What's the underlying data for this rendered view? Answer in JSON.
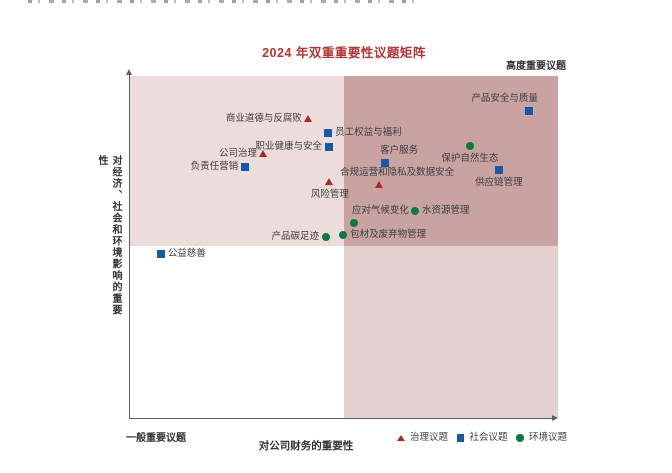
{
  "page": {
    "title": "2024 年双重重要性议题矩阵",
    "corner_label_top_right": "高度重要议题",
    "corner_label_bottom_left": "一般重要议题",
    "x_axis_title": "对公司财务的重要性",
    "y_axis_title": "对经济、社会和环境影响的重要性"
  },
  "colors": {
    "title": "#b23535",
    "governance": "#b02626",
    "social": "#1659a5",
    "environment": "#0c7a40",
    "quadrant_top_left": "#ecdcdc",
    "quadrant_top_right": "#c9a2a2",
    "quadrant_bottom_left": "#ffffff",
    "quadrant_bottom_right": "#e3d0d0",
    "axis": "#5f5f5f"
  },
  "legend": {
    "items": [
      {
        "label": "治理议题",
        "marker": "triangle",
        "category": "governance"
      },
      {
        "label": "社会议题",
        "marker": "square",
        "category": "social"
      },
      {
        "label": "环境议题",
        "marker": "circle",
        "category": "environment"
      }
    ]
  },
  "chart_data": {
    "type": "scatter",
    "title": "2024 年双重重要性议题矩阵",
    "xlabel": "对公司财务的重要性",
    "ylabel": "对经济、社会和环境影响的重要性",
    "xlim": [
      0,
      100
    ],
    "ylim": [
      0,
      100
    ],
    "grid": false,
    "legend_position": "bottom-right",
    "quadrant_labels": {
      "top_right": "高度重要议题",
      "bottom_left": "一般重要议题"
    },
    "quadrant_split": {
      "x_pct": 50,
      "y_pct": 50.3
    },
    "series": [
      {
        "name": "治理议题",
        "marker": "triangle",
        "category": "governance",
        "points": [
          {
            "label": "商业道德与反腐败",
            "x": 41.8,
            "y": 87.4,
            "side": "left"
          },
          {
            "label": "公司治理",
            "x": 31.3,
            "y": 77.2,
            "side": "left"
          },
          {
            "label": "合规运营和隐私及数据安全",
            "x": 58.2,
            "y": 68.1,
            "side": "above",
            "dx": -39
          },
          {
            "label": "风险管理",
            "x": 46.7,
            "y": 69.0,
            "side": "below"
          }
        ]
      },
      {
        "name": "社会议题",
        "marker": "square",
        "category": "social",
        "points": [
          {
            "label": "产品安全与质量",
            "x": 93.2,
            "y": 89.8,
            "side": "above",
            "align": "end"
          },
          {
            "label": "员工权益与福利",
            "x": 46.3,
            "y": 83.3,
            "side": "right"
          },
          {
            "label": "职业健康与安全",
            "x": 46.5,
            "y": 79.2,
            "side": "left"
          },
          {
            "label": "负责任营销",
            "x": 26.9,
            "y": 73.4,
            "side": "left"
          },
          {
            "label": "客户服务",
            "x": 59.6,
            "y": 74.6,
            "side": "above",
            "dx": -5
          },
          {
            "label": "供应链管理",
            "x": 86.2,
            "y": 72.5,
            "side": "below"
          },
          {
            "label": "公益慈善",
            "x": 7.2,
            "y": 48.0,
            "side": "right"
          }
        ]
      },
      {
        "name": "环境议题",
        "marker": "circle",
        "category": "environment",
        "points": [
          {
            "label": "保护自然生态",
            "x": 79.4,
            "y": 79.5,
            "side": "below"
          },
          {
            "label": "应对气候变化",
            "x": 52.3,
            "y": 57.0,
            "side": "above",
            "dx": -2
          },
          {
            "label": "水资源管理",
            "x": 66.6,
            "y": 60.5,
            "side": "right"
          },
          {
            "label": "产品碳足迹",
            "x": 45.8,
            "y": 52.9,
            "side": "left"
          },
          {
            "label": "包材及废弃物管理",
            "x": 49.8,
            "y": 53.5,
            "side": "right"
          }
        ]
      }
    ]
  }
}
